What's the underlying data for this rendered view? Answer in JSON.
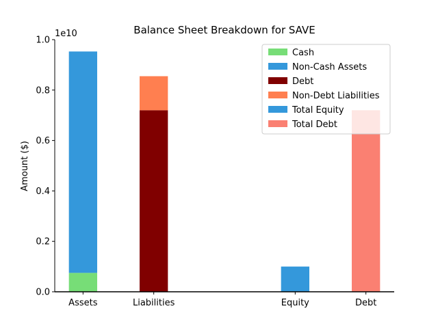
{
  "chart_data": {
    "type": "bar",
    "title": "Balance Sheet Breakdown for SAVE",
    "xlabel": "",
    "ylabel": "Amount ($)",
    "y_multiplier_label": "1e10",
    "ylim": [
      0,
      1.0
    ],
    "y_ticks": [
      "0.0",
      "0.2",
      "0.4",
      "0.6",
      "0.8",
      "1.0"
    ],
    "y_tick_values": [
      0,
      0.2,
      0.4,
      0.6,
      0.8,
      1.0
    ],
    "x_tick_positions": [
      0,
      1,
      3,
      4
    ],
    "categories": [
      "Assets",
      "Liabilities",
      "Equity",
      "Debt"
    ],
    "grid": false,
    "legend_position": "top-right",
    "series": [
      {
        "name": "Cash",
        "color": "#77dd77",
        "category": "Assets",
        "base": 0,
        "value": 0.075
      },
      {
        "name": "Non-Cash Assets",
        "color": "#3498db",
        "category": "Assets",
        "base": 0.075,
        "value": 0.878
      },
      {
        "name": "Debt",
        "color": "#800000",
        "category": "Liabilities",
        "base": 0,
        "value": 0.72
      },
      {
        "name": "Non-Debt Liabilities",
        "color": "#ff7f50",
        "category": "Liabilities",
        "base": 0.72,
        "value": 0.135
      },
      {
        "name": "Total Equity",
        "color": "#3498db",
        "category": "Equity",
        "base": 0,
        "value": 0.1
      },
      {
        "name": "Total Debt",
        "color": "#fa8072",
        "category": "Debt",
        "base": 0,
        "value": 0.72
      }
    ]
  }
}
